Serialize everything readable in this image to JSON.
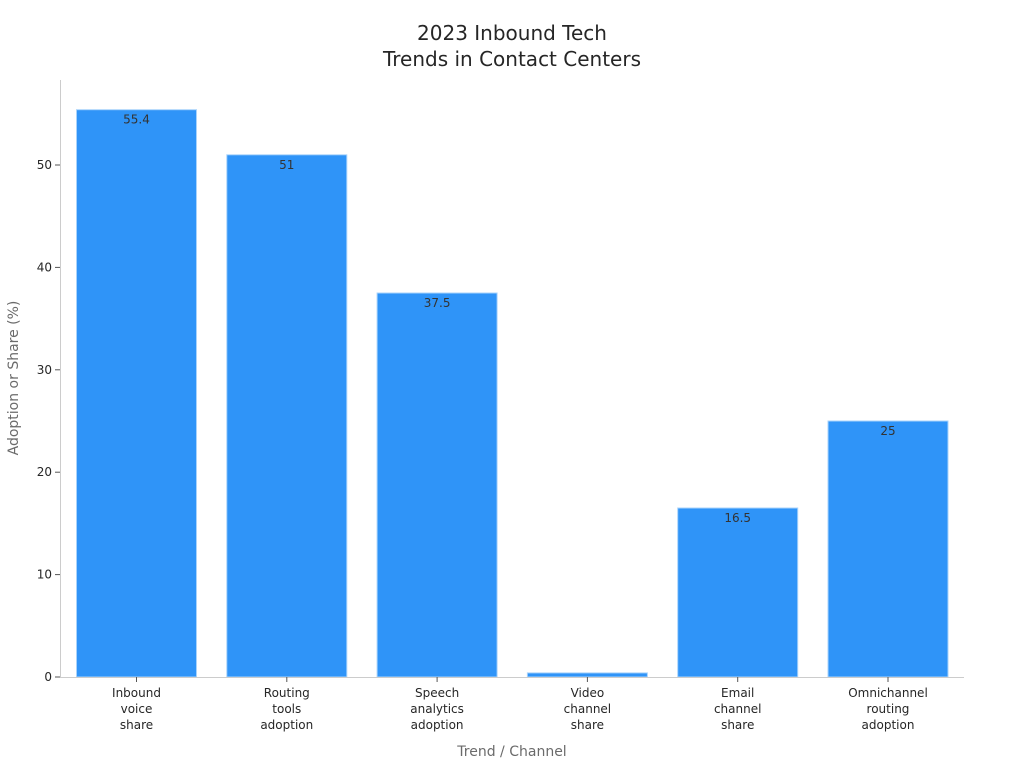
{
  "chart_data": {
    "type": "bar",
    "title_lines": [
      "2023 Inbound Tech",
      "Trends in Contact Centers"
    ],
    "xlabel": "Trend / Channel",
    "ylabel": "Adoption or Share (%)",
    "categories": [
      [
        "Inbound",
        "voice",
        "share"
      ],
      [
        "Routing",
        "tools",
        "adoption"
      ],
      [
        "Speech",
        "analytics",
        "adoption"
      ],
      [
        "Video",
        "channel",
        "share"
      ],
      [
        "Email",
        "channel",
        "share"
      ],
      [
        "Omnichannel",
        "routing",
        "adoption"
      ]
    ],
    "values": [
      55.4,
      51,
      37.5,
      0.4,
      16.5,
      25
    ],
    "data_labels": [
      "55.4",
      "51",
      "37.5",
      "",
      "16.5",
      "25"
    ],
    "ylim": [
      0,
      58.3
    ],
    "yticks": [
      0,
      10,
      20,
      30,
      40,
      50
    ],
    "grid": false,
    "bar_color": "#2f94f8",
    "bar_edge_color": "#a9d3fb"
  }
}
